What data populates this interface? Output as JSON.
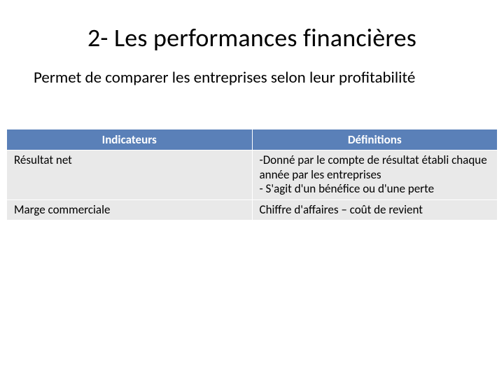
{
  "title": "2- Les performances financières",
  "subtitle": "Permet de comparer les entreprises selon leur profitabilité",
  "table": {
    "columns": [
      "Indicateurs",
      "Définitions"
    ],
    "rows": [
      {
        "indicator": "Résultat net",
        "definition": "-Donné par le compte de résultat établi chaque année par les entreprises\n- S'agit d'un bénéfice ou d'une perte"
      },
      {
        "indicator": "Marge commerciale",
        "definition": "Chiffre d'affaires – coût de revient"
      }
    ],
    "header_bg": "#5a80b8",
    "header_fg": "#ffffff",
    "cell_bg": "#e9e9e9",
    "cell_fg": "#000000",
    "border_color": "#ffffff",
    "header_fontsize": 17,
    "cell_fontsize": 17,
    "col_widths_pct": [
      50,
      50
    ]
  },
  "background_color": "#ffffff",
  "title_fontsize": 36,
  "subtitle_fontsize": 23
}
